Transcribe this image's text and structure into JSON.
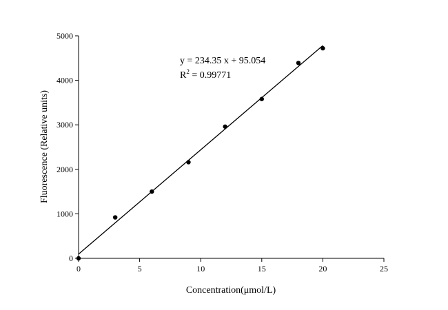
{
  "chart_data": {
    "type": "scatter",
    "title": "",
    "xlabel": "Concentration(μmol/L)",
    "ylabel": "Fluorescence (Relative units)",
    "xlim": [
      0,
      25
    ],
    "ylim": [
      0,
      5000
    ],
    "x_ticks": [
      0,
      5,
      10,
      15,
      20,
      25
    ],
    "y_ticks": [
      0,
      1000,
      2000,
      3000,
      4000,
      5000
    ],
    "x_tick_labels": [
      "0",
      "5",
      "10",
      "15",
      "20",
      "25"
    ],
    "y_tick_labels": [
      "0",
      "1000",
      "2000",
      "3000",
      "4000",
      "5000"
    ],
    "grid": false,
    "series": [
      {
        "x": [
          0,
          3,
          6,
          9,
          12,
          15,
          18,
          20
        ],
        "y": [
          0,
          920,
          1500,
          2160,
          2960,
          3580,
          4390,
          4720
        ],
        "color": "#000000"
      }
    ],
    "fit": {
      "slope": 234.35,
      "intercept": 95.054,
      "x_range": [
        0,
        20
      ]
    },
    "annotations": {
      "equation": "y = 234.35 x + 95.054",
      "r2_prefix": "R",
      "r2_superscript": "2",
      "r2_value": " = 0.99771"
    }
  }
}
